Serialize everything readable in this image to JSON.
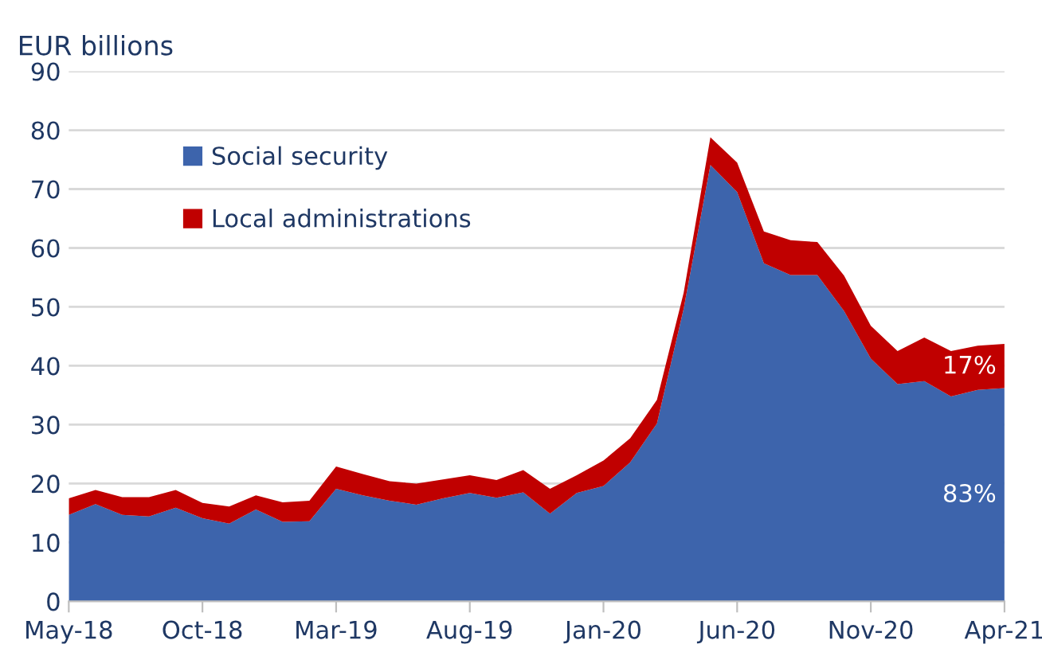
{
  "chart_data": {
    "type": "area",
    "stacked": true,
    "ylabel": "EUR billions",
    "categories": [
      "May-18",
      null,
      null,
      null,
      null,
      "Oct-18",
      null,
      null,
      null,
      null,
      "Mar-19",
      null,
      null,
      null,
      null,
      "Aug-19",
      null,
      null,
      null,
      null,
      "Jan-20",
      null,
      null,
      null,
      null,
      "Jun-20",
      null,
      null,
      null,
      null,
      "Nov-20",
      null,
      null,
      null,
      null,
      "Apr-21"
    ],
    "series": [
      {
        "name": "Social security",
        "color": "#3d64ac",
        "values": [
          14.7,
          16.5,
          14.7,
          14.4,
          15.9,
          14.1,
          13.2,
          15.6,
          13.5,
          13.6,
          19.1,
          18.0,
          17.1,
          16.4,
          17.5,
          18.4,
          17.6,
          18.5,
          14.9,
          18.4,
          19.6,
          23.6,
          30.2,
          49.7,
          74.1,
          69.5,
          57.4,
          55.4,
          55.4,
          49.3,
          41.2,
          36.9,
          37.4,
          34.8,
          35.9,
          36.2
        ]
      },
      {
        "name": "Local administrations",
        "color": "#c00000",
        "values": [
          2.8,
          2.4,
          3.0,
          3.3,
          3.0,
          2.6,
          2.9,
          2.4,
          3.3,
          3.5,
          3.8,
          3.6,
          3.3,
          3.6,
          3.2,
          3.0,
          3.0,
          3.8,
          4.2,
          3.0,
          4.3,
          4.1,
          4.0,
          2.7,
          4.7,
          5.0,
          5.4,
          5.9,
          5.6,
          6.0,
          5.6,
          5.6,
          7.4,
          7.7,
          7.5,
          7.5
        ]
      }
    ],
    "ylim": [
      0,
      90
    ],
    "yticks": [
      0,
      10,
      20,
      30,
      40,
      50,
      60,
      70,
      80,
      90
    ],
    "grid": "y",
    "legend": "top left",
    "annotations": [
      {
        "text": "17%",
        "x": "Apr-21",
        "y": 39.8
      },
      {
        "text": "83%",
        "x": "Apr-21",
        "y": 18
      }
    ]
  }
}
